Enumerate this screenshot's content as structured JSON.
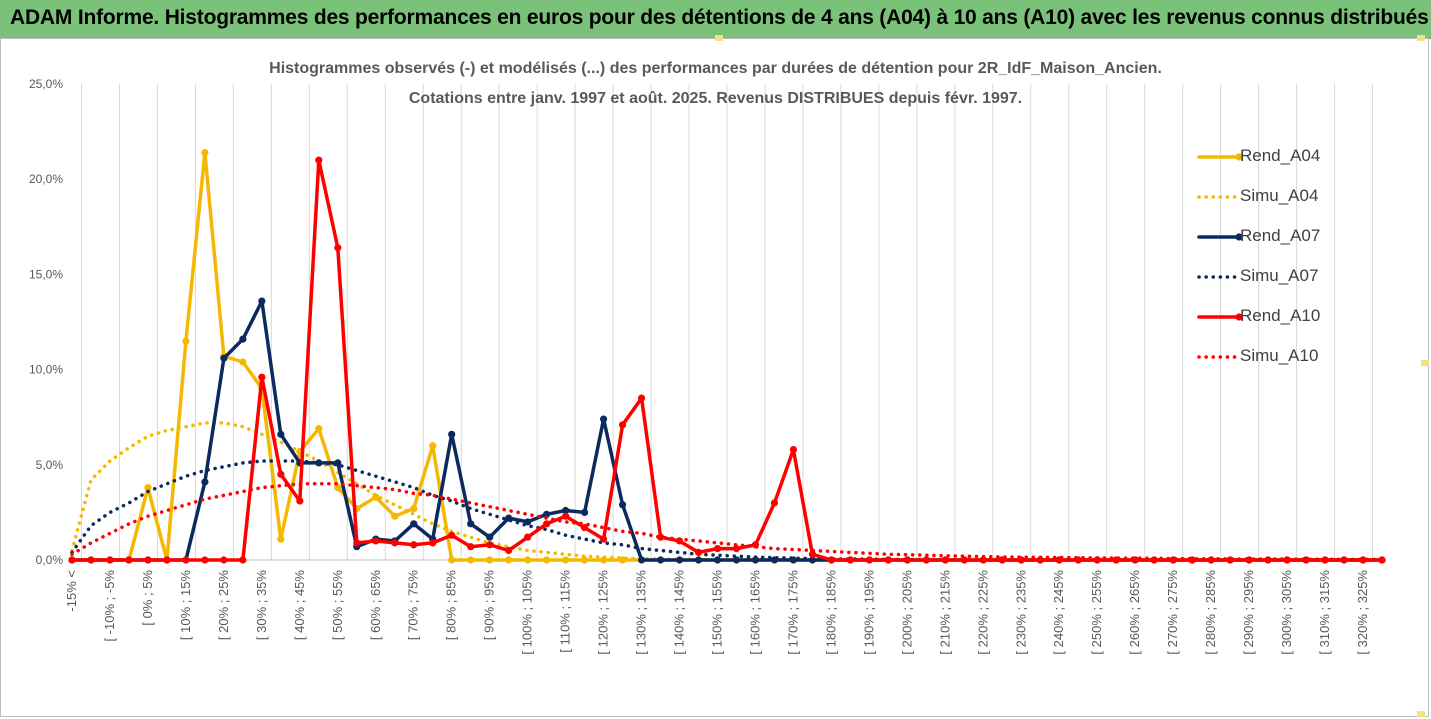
{
  "header": {
    "title": "ADAM Informe. Histogrammes des performances en euros pour des détentions de 4 ans (A04) à 10 ans (A10) avec les revenus connus distribués"
  },
  "chart_data": {
    "type": "line",
    "title_line1": "Histogrammes observés (-) et modélisés (...) des performances par durées de détention pour 2R_IdF_Maison_Ancien.",
    "title_line2": "Cotations entre janv. 1997 et août. 2025. Revenus DISTRIBUES depuis févr. 1997.",
    "ylim": [
      0,
      25
    ],
    "y_ticks": [
      "0,0%",
      "5,0%",
      "10,0%",
      "15,0%",
      "20,0%",
      "25,0%"
    ],
    "y_tick_values": [
      0,
      5,
      10,
      15,
      20,
      25
    ],
    "x_tick_labels": [
      "-15% <",
      "[ -10% ; -5%",
      "[ 0% ; 5%",
      "[ 10% ; 15%",
      "[ 20% ; 25%",
      "[ 30% ; 35%",
      "[ 40% ; 45%",
      "[ 50% ; 55%",
      "[ 60% ; 65%",
      "[ 70% ; 75%",
      "[ 80% ; 85%",
      "[ 90% ; 95%",
      "[ 100% ; 105%",
      "[ 110% ; 115%",
      "[ 120% ; 125%",
      "[ 130% ; 135%",
      "[ 140% ; 145%",
      "[ 150% ; 155%",
      "[ 160% ; 165%",
      "[ 170% ; 175%",
      "[ 180% ; 185%",
      "[ 190% ; 195%",
      "[ 200% ; 205%",
      "[ 210% ; 215%",
      "[ 220% ; 225%",
      "[ 230% ; 235%",
      "[ 240% ; 245%",
      "[ 250% ; 255%",
      "[ 260% ; 265%",
      "[ 270% ; 275%",
      "[ 280% ; 285%",
      "[ 290% ; 295%",
      "[ 300% ; 305%",
      "[ 310% ; 315%",
      "[ 320% ; 325%"
    ],
    "category_count": 70,
    "grid": "vertical",
    "legend_position": "right",
    "series": [
      {
        "name": "Rend_A04",
        "color": "#f5b800",
        "style": "solid",
        "marker": "circle",
        "values": [
          0,
          0,
          0,
          0,
          3.8,
          0,
          11.5,
          21.4,
          10.7,
          10.4,
          9.0,
          1.1,
          5.7,
          6.9,
          3.8,
          2.7,
          3.3,
          2.3,
          2.7,
          6.0,
          0,
          0,
          0,
          0,
          0,
          0,
          0,
          0,
          0,
          0,
          0,
          0,
          0,
          0,
          0,
          0,
          0,
          0,
          0,
          0,
          0,
          0,
          0,
          0,
          0,
          0,
          0,
          0,
          0,
          0,
          0,
          0,
          0,
          0,
          0,
          0,
          0,
          0,
          0,
          0,
          0,
          0,
          0,
          0,
          0,
          0,
          0,
          0,
          0,
          0
        ]
      },
      {
        "name": "Simu_A04",
        "color": "#f5b800",
        "style": "dotted",
        "values": [
          0.5,
          4.2,
          5.2,
          5.9,
          6.5,
          6.8,
          7.0,
          7.2,
          7.2,
          7.0,
          6.6,
          6.2,
          5.7,
          5.2,
          4.6,
          4.0,
          3.4,
          2.9,
          2.4,
          1.9,
          1.5,
          1.2,
          0.9,
          0.7,
          0.5,
          0.4,
          0.3,
          0.2,
          0.15,
          0.1,
          0.07,
          0.05,
          0.03,
          0.02,
          0.01,
          0,
          0,
          0,
          0,
          0,
          0,
          0,
          0,
          0,
          0,
          0,
          0,
          0,
          0,
          0,
          0,
          0,
          0,
          0,
          0,
          0,
          0,
          0,
          0,
          0,
          0,
          0,
          0,
          0,
          0,
          0,
          0,
          0,
          0,
          0
        ]
      },
      {
        "name": "Rend_A07",
        "color": "#0b2a5e",
        "style": "solid",
        "marker": "circle",
        "values": [
          0,
          0,
          0,
          0,
          0,
          0,
          0,
          4.1,
          10.6,
          11.6,
          13.6,
          6.6,
          5.1,
          5.1,
          5.1,
          0.7,
          1.1,
          1.0,
          1.9,
          1.1,
          6.6,
          1.9,
          1.2,
          2.2,
          2.0,
          2.4,
          2.6,
          2.5,
          7.4,
          2.9,
          0,
          0,
          0,
          0,
          0,
          0,
          0,
          0,
          0,
          0,
          0,
          0,
          0,
          0,
          0,
          0,
          0,
          0,
          0,
          0,
          0,
          0,
          0,
          0,
          0,
          0,
          0,
          0,
          0,
          0,
          0,
          0,
          0,
          0,
          0,
          0,
          0,
          0,
          0,
          0
        ]
      },
      {
        "name": "Simu_A07",
        "color": "#0b2a5e",
        "style": "dotted",
        "values": [
          0.4,
          1.8,
          2.5,
          3.0,
          3.6,
          4.0,
          4.4,
          4.7,
          4.9,
          5.1,
          5.2,
          5.2,
          5.2,
          5.1,
          5.0,
          4.7,
          4.4,
          4.1,
          3.8,
          3.4,
          3.1,
          2.7,
          2.4,
          2.1,
          1.8,
          1.6,
          1.3,
          1.1,
          0.9,
          0.8,
          0.6,
          0.5,
          0.4,
          0.3,
          0.25,
          0.2,
          0.15,
          0.12,
          0.1,
          0.08,
          0.06,
          0.05,
          0.04,
          0.03,
          0.02,
          0.02,
          0.01,
          0,
          0,
          0,
          0,
          0,
          0,
          0,
          0,
          0,
          0,
          0,
          0,
          0,
          0,
          0,
          0,
          0,
          0,
          0,
          0,
          0,
          0,
          0
        ]
      },
      {
        "name": "Rend_A10",
        "color": "#ff0000",
        "style": "solid",
        "marker": "circle",
        "values": [
          0,
          0,
          0,
          0,
          0,
          0,
          0,
          0,
          0,
          0,
          9.6,
          4.5,
          3.1,
          21.0,
          16.4,
          0.9,
          1.0,
          0.9,
          0.8,
          0.9,
          1.3,
          0.7,
          0.8,
          0.5,
          1.2,
          1.9,
          2.3,
          1.7,
          1.1,
          7.1,
          8.5,
          1.2,
          1.0,
          0.4,
          0.6,
          0.6,
          0.8,
          3.0,
          5.8,
          0.3,
          0,
          0,
          0,
          0,
          0,
          0,
          0,
          0,
          0,
          0,
          0,
          0,
          0,
          0,
          0,
          0,
          0,
          0,
          0,
          0,
          0,
          0,
          0,
          0,
          0,
          0,
          0,
          0,
          0,
          0
        ]
      },
      {
        "name": "Simu_A10",
        "color": "#ff0000",
        "style": "dotted",
        "values": [
          0.3,
          0.9,
          1.4,
          1.9,
          2.3,
          2.6,
          2.9,
          3.2,
          3.4,
          3.6,
          3.8,
          3.9,
          4.0,
          4.0,
          4.0,
          3.9,
          3.8,
          3.7,
          3.5,
          3.4,
          3.2,
          3.0,
          2.8,
          2.6,
          2.4,
          2.2,
          2.0,
          1.9,
          1.7,
          1.5,
          1.4,
          1.2,
          1.1,
          1.0,
          0.9,
          0.8,
          0.7,
          0.6,
          0.55,
          0.5,
          0.45,
          0.4,
          0.35,
          0.3,
          0.28,
          0.25,
          0.22,
          0.2,
          0.18,
          0.16,
          0.15,
          0.14,
          0.13,
          0.12,
          0.11,
          0.1,
          0.1,
          0.09,
          0.08,
          0.07,
          0.07,
          0.06,
          0.05,
          0.05,
          0.05,
          0.04,
          0.04,
          0.03,
          0.03,
          0.03
        ]
      }
    ]
  }
}
